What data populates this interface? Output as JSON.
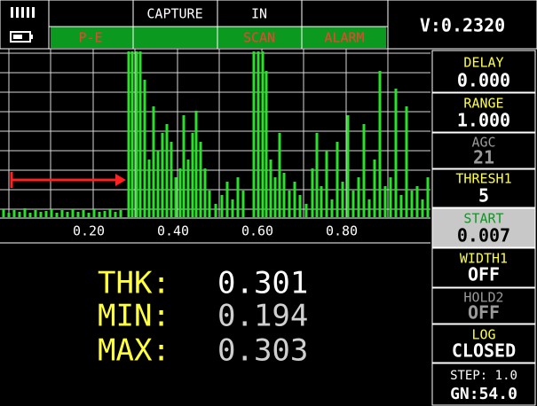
{
  "header": {
    "cells": [
      "CAPTURE",
      "IN"
    ],
    "status": [
      "P-E",
      "SCAN",
      "ALARM"
    ],
    "voltage": "V:0.2320"
  },
  "axis_labels": [
    "0.20",
    "0.40",
    "0.60",
    "0.80"
  ],
  "readings": [
    {
      "label": "THK:",
      "value": "0.301"
    },
    {
      "label": "MIN:",
      "value": "0.194"
    },
    {
      "label": "MAX:",
      "value": "0.303"
    }
  ],
  "menu": [
    {
      "label": "DELAY",
      "value": "0.000"
    },
    {
      "label": "RANGE",
      "value": "1.000"
    },
    {
      "label": "AGC",
      "value": "21"
    },
    {
      "label": "THRESH1",
      "value": "5"
    },
    {
      "label": "START",
      "value": "0.007"
    },
    {
      "label": "WIDTH1",
      "value": "OFF"
    },
    {
      "label": "HOLD2",
      "value": "OFF"
    },
    {
      "label": "LOG",
      "value": "CLOSED"
    }
  ],
  "footer": {
    "step": "STEP: 1.0",
    "gain": "GN:54.0"
  }
}
